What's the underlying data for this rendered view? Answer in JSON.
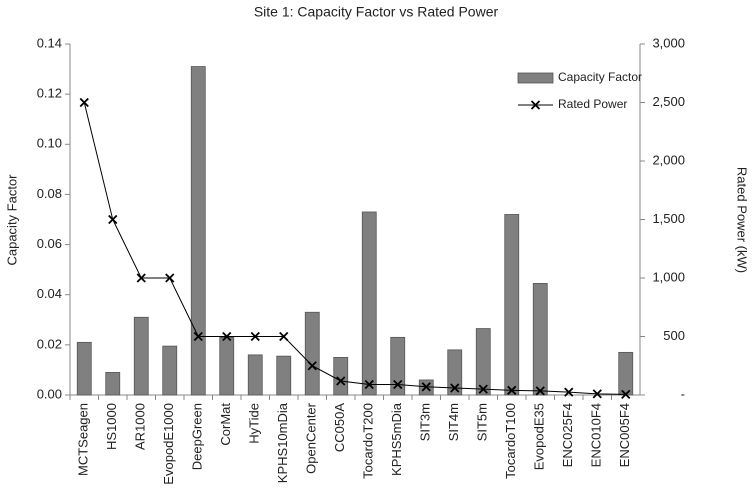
{
  "chart_data": {
    "type": "bar",
    "title": "Site 1: Capacity Factor vs Rated Power",
    "ylabel": "Capacity Factor",
    "y2label": "Rated Power (kW)",
    "categories": [
      "MCTSeagen",
      "HS1000",
      "AR1000",
      "EvopodE1000",
      "DeepGreen",
      "CorMat",
      "HyTide",
      "KPHS10mDia",
      "OpenCenter",
      "CC050A",
      "TocardoT200",
      "KPHS5mDia",
      "SIT3m",
      "SIT4m",
      "SIT5m",
      "TocardoT100",
      "EvopodE35",
      "ENC025F4",
      "ENC010F4",
      "ENC005F4"
    ],
    "series": [
      {
        "name": "Capacity Factor",
        "type": "bar",
        "color": "#808080",
        "values": [
          0.021,
          0.009,
          0.031,
          0.0195,
          0.131,
          0.023,
          0.016,
          0.0155,
          0.033,
          0.015,
          0.073,
          0.023,
          0.006,
          0.018,
          0.0265,
          0.072,
          0.0445,
          0,
          0,
          0.017
        ]
      },
      {
        "name": "Rated Power",
        "type": "line",
        "axis": "y2",
        "color": "#000000",
        "values": [
          2500,
          1500,
          1000,
          1000,
          500,
          500,
          500,
          500,
          250,
          120,
          90,
          90,
          70,
          60,
          50,
          40,
          35,
          25,
          10,
          5
        ]
      }
    ],
    "ylim": [
      0,
      0.14
    ],
    "yticks": [
      {
        "value": 0,
        "label": "0.00"
      },
      {
        "value": 0.02,
        "label": "0.02"
      },
      {
        "value": 0.04,
        "label": "0.04"
      },
      {
        "value": 0.06,
        "label": "0.06"
      },
      {
        "value": 0.08,
        "label": "0.08"
      },
      {
        "value": 0.1,
        "label": "0.10"
      },
      {
        "value": 0.12,
        "label": "0.12"
      },
      {
        "value": 0.14,
        "label": "0.14"
      }
    ],
    "y2lim": [
      0,
      3000
    ],
    "y2ticks": [
      {
        "value": 0,
        "label": "-"
      },
      500,
      {
        "value": 1000,
        "label": "1,000"
      },
      {
        "value": 1500,
        "label": "1,500"
      },
      {
        "value": 2000,
        "label": "2,000"
      },
      {
        "value": 2500,
        "label": "2,500"
      },
      {
        "value": 3000,
        "label": "3,000"
      }
    ],
    "grid": false,
    "legend": "upper right"
  }
}
